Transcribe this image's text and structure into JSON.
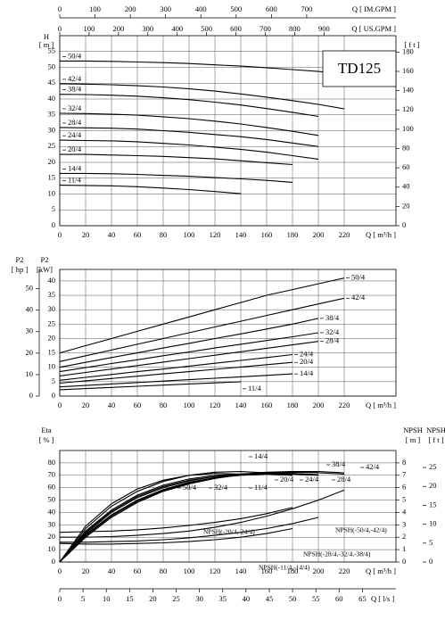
{
  "chart_data": [
    {
      "type": "line",
      "title": "TD125",
      "y_label": "H",
      "y_unit": "[ m ]",
      "y2_unit": "[ f t ]",
      "x_label": "Q [ m³/h ]",
      "grid": true,
      "top_axes": [
        {
          "label": "Q [ IM.GPM ]",
          "lim": [
            0,
            953
          ],
          "ticks": [
            0,
            100,
            200,
            300,
            400,
            500,
            600,
            700
          ]
        },
        {
          "label": "Q [ US.GPM ]",
          "lim": [
            0,
            1145
          ],
          "ticks": [
            0,
            100,
            200,
            300,
            400,
            500,
            600,
            700,
            800,
            900
          ]
        }
      ],
      "xlim": [
        0,
        260
      ],
      "xticks": [
        0,
        20,
        40,
        60,
        80,
        100,
        120,
        140,
        160,
        180,
        200,
        220
      ],
      "ylim": [
        0,
        60
      ],
      "yticks": [
        0,
        5,
        10,
        15,
        20,
        25,
        30,
        35,
        40,
        45,
        50,
        55
      ],
      "y2lim": [
        0,
        197
      ],
      "y2ticks": [
        0,
        20,
        40,
        60,
        80,
        100,
        120,
        140,
        160,
        180
      ],
      "x": [
        0,
        20,
        40,
        60,
        80,
        100,
        120,
        140,
        160,
        180,
        200,
        220
      ],
      "series": [
        {
          "name": "50/4",
          "color": "#000000",
          "values": [
            52,
            52,
            51.9,
            51.7,
            51.5,
            51.2,
            50.8,
            50.4,
            49.9,
            49.3,
            48.7,
            48
          ]
        },
        {
          "name": "42/4",
          "color": "#000000",
          "values": [
            44.8,
            44.7,
            44.5,
            44.2,
            43.8,
            43.2,
            42.5,
            41.6,
            40.6,
            39.5,
            38.3,
            36.9
          ]
        },
        {
          "name": "38/4",
          "color": "#000000",
          "values": [
            41.5,
            41.4,
            41.2,
            40.9,
            40.4,
            39.8,
            39,
            38.1,
            37,
            35.8,
            34.5,
            null
          ]
        },
        {
          "name": "32/4",
          "color": "#000000",
          "values": [
            35.5,
            35.4,
            35.2,
            34.9,
            34.4,
            33.8,
            33,
            32.1,
            31,
            29.8,
            28.5,
            null
          ]
        },
        {
          "name": "28/4",
          "color": "#000000",
          "values": [
            31,
            30.9,
            30.8,
            30.5,
            30,
            29.5,
            28.8,
            28.1,
            27.2,
            26.1,
            25,
            null
          ]
        },
        {
          "name": "24/4",
          "color": "#000000",
          "values": [
            27,
            26.9,
            26.8,
            26.5,
            26,
            25.5,
            24.8,
            24.1,
            23.2,
            22.1,
            21,
            null
          ]
        },
        {
          "name": "20/4",
          "color": "#000000",
          "values": [
            22.5,
            22.5,
            22.3,
            22.1,
            21.9,
            21.5,
            21.1,
            20.5,
            19.9,
            19.3,
            null,
            null
          ]
        },
        {
          "name": "14/4",
          "color": "#000000",
          "values": [
            16.5,
            16.5,
            16.4,
            16.2,
            15.9,
            15.6,
            15.2,
            14.8,
            14.3,
            13.7,
            null,
            null
          ]
        },
        {
          "name": "11/4",
          "color": "#000000",
          "values": [
            12.8,
            12.7,
            12.6,
            12.3,
            11.9,
            11.4,
            10.8,
            10.1,
            null,
            null,
            null,
            null
          ]
        }
      ]
    },
    {
      "type": "line",
      "y_label": "P2",
      "y_unit": "[kW]",
      "y2_label": "P2",
      "y2_unit": "[ hp ]",
      "x_label": "Q [ m³/h ]",
      "grid": true,
      "xlim": [
        0,
        260
      ],
      "xticks": [
        0,
        20,
        40,
        60,
        80,
        100,
        120,
        140,
        160,
        180,
        200,
        220
      ],
      "ylim": [
        0,
        44
      ],
      "yticks": [
        0,
        5,
        10,
        15,
        20,
        25,
        30,
        35,
        40
      ],
      "y2lim": [
        0,
        59
      ],
      "y2ticks": [
        0,
        10,
        20,
        30,
        40,
        50
      ],
      "x": [
        0,
        20,
        40,
        60,
        80,
        100,
        120,
        140,
        160,
        180,
        200,
        220
      ],
      "series": [
        {
          "name": "50/4",
          "color": "#000000",
          "values": [
            15,
            17.5,
            20,
            22.5,
            25,
            27.5,
            30,
            32.5,
            35,
            37,
            39,
            41
          ]
        },
        {
          "name": "42/4",
          "color": "#000000",
          "values": [
            12,
            14,
            16,
            18,
            20,
            22,
            24,
            26,
            28,
            30,
            32,
            34
          ]
        },
        {
          "name": "38/4",
          "color": "#000000",
          "values": [
            10,
            11.7,
            13.4,
            15,
            16.7,
            18.3,
            20,
            21.6,
            23.3,
            25,
            27,
            null
          ]
        },
        {
          "name": "32/4",
          "color": "#000000",
          "values": [
            8.5,
            9.9,
            11.3,
            12.6,
            14,
            15.3,
            16.7,
            18,
            19.3,
            20.6,
            22,
            null
          ]
        },
        {
          "name": "28/4",
          "color": "#000000",
          "values": [
            7,
            8.2,
            9.4,
            10.6,
            11.8,
            13,
            14.2,
            15.4,
            16.6,
            17.8,
            19,
            null
          ]
        },
        {
          "name": "24/4",
          "color": "#000000",
          "values": [
            5.5,
            6.5,
            7.5,
            8.5,
            9.4,
            10.4,
            11.4,
            12.4,
            13.4,
            14.4,
            null,
            null
          ]
        },
        {
          "name": "20/4",
          "color": "#000000",
          "values": [
            4.5,
            5.3,
            6.1,
            6.9,
            7.7,
            8.5,
            9.3,
            10.1,
            10.9,
            11.7,
            null,
            null
          ]
        },
        {
          "name": "14/4",
          "color": "#000000",
          "values": [
            3.2,
            3.7,
            4.2,
            4.7,
            5.2,
            5.7,
            6.2,
            6.7,
            7.2,
            7.7,
            null,
            null
          ]
        },
        {
          "name": "11/4",
          "color": "#000000",
          "values": [
            2.2,
            2.6,
            3,
            3.4,
            3.8,
            4.2,
            4.6,
            5,
            null,
            null,
            null,
            null
          ]
        }
      ]
    },
    {
      "type": "line",
      "y_label": "Eta",
      "y_unit": "[ % ]",
      "y2_label": "NPSH",
      "y2_unit": "[ m ]",
      "y3_label": "NPSH",
      "y3_unit": "[ f t ]",
      "x_label": "Q [ m³/h ]",
      "grid": true,
      "bottom_axis": {
        "label": "Q [ l/s ]",
        "lim": [
          0,
          72.2
        ],
        "ticks": [
          0,
          5,
          10,
          15,
          20,
          25,
          30,
          35,
          40,
          45,
          50,
          55,
          60,
          65
        ]
      },
      "xlim": [
        0,
        260
      ],
      "xticks": [
        0,
        20,
        40,
        60,
        80,
        100,
        120,
        140,
        160,
        180,
        200,
        220
      ],
      "ylim": [
        0,
        90
      ],
      "yticks": [
        0,
        10,
        20,
        30,
        40,
        50,
        60,
        70,
        80
      ],
      "y2lim": [
        0,
        9
      ],
      "y2ticks": [
        0,
        1,
        2,
        3,
        4,
        5,
        6,
        7,
        8
      ],
      "y3lim": [
        0,
        29.5
      ],
      "y3ticks": [
        0,
        5,
        10,
        15,
        20,
        25
      ],
      "x": [
        0,
        20,
        40,
        60,
        80,
        100,
        120,
        140,
        160,
        180,
        200,
        220
      ],
      "series": [
        {
          "name": "50/4",
          "color": "#000000",
          "values": [
            0,
            22,
            38,
            50,
            58,
            64,
            68,
            70.5,
            72,
            72.5,
            72,
            71
          ]
        },
        {
          "name": "42/4",
          "color": "#000000",
          "values": [
            0,
            20,
            36,
            48,
            57,
            63,
            67.5,
            70.5,
            72,
            73,
            73,
            72
          ]
        },
        {
          "name": "38/4",
          "color": "#000000",
          "values": [
            0,
            21,
            37,
            49,
            57.5,
            63.5,
            68,
            71,
            72.5,
            73,
            72.5,
            null
          ]
        },
        {
          "name": "32/4",
          "color": "#000000",
          "values": [
            0,
            23,
            40,
            52,
            60,
            65.5,
            69,
            71,
            71.8,
            71.5,
            70.5,
            null
          ]
        },
        {
          "name": "28/4",
          "color": "#000000",
          "values": [
            0,
            22,
            38,
            50,
            58.5,
            64.5,
            68,
            70,
            71,
            71,
            70,
            null
          ]
        },
        {
          "name": "24/4",
          "color": "#000000",
          "values": [
            0,
            24,
            41,
            53,
            61,
            66,
            69,
            71,
            71.5,
            71,
            null,
            null
          ]
        },
        {
          "name": "20/4",
          "color": "#000000",
          "values": [
            0,
            25,
            42,
            54,
            62,
            67,
            70,
            71,
            71,
            70,
            null,
            null
          ]
        },
        {
          "name": "14/4",
          "color": "#000000",
          "values": [
            0,
            27,
            45,
            57,
            65,
            70,
            72.5,
            73,
            72,
            70,
            null,
            null
          ]
        },
        {
          "name": "11/4",
          "color": "#000000",
          "values": [
            0,
            29,
            47,
            59,
            66,
            70,
            71.5,
            71,
            null,
            null,
            null,
            null
          ]
        },
        {
          "name": "NPSH(-20/4,-24/4)",
          "color": "#000000",
          "axis": "y2",
          "values": [
            2.4,
            2.45,
            2.5,
            2.6,
            2.75,
            2.95,
            3.2,
            3.5,
            3.9,
            4.4,
            null,
            null
          ]
        },
        {
          "name": "NPSH(-50/4,-42/4)",
          "color": "#000000",
          "axis": "y2",
          "values": [
            2,
            2,
            2.05,
            2.15,
            2.3,
            2.5,
            2.8,
            3.2,
            3.7,
            4.3,
            5,
            5.8
          ]
        },
        {
          "name": "NPSH(-28/4,-32/4,-38/4)",
          "color": "#000000",
          "axis": "y2",
          "values": [
            1.6,
            1.6,
            1.65,
            1.7,
            1.8,
            1.95,
            2.15,
            2.4,
            2.7,
            3.1,
            3.6,
            null
          ]
        },
        {
          "name": "NPSH(-11/4,-14/4)",
          "color": "#000000",
          "axis": "y2",
          "values": [
            1.5,
            1.45,
            1.45,
            1.5,
            1.55,
            1.65,
            1.8,
            2,
            2.3,
            2.7,
            null,
            null
          ]
        }
      ]
    }
  ]
}
